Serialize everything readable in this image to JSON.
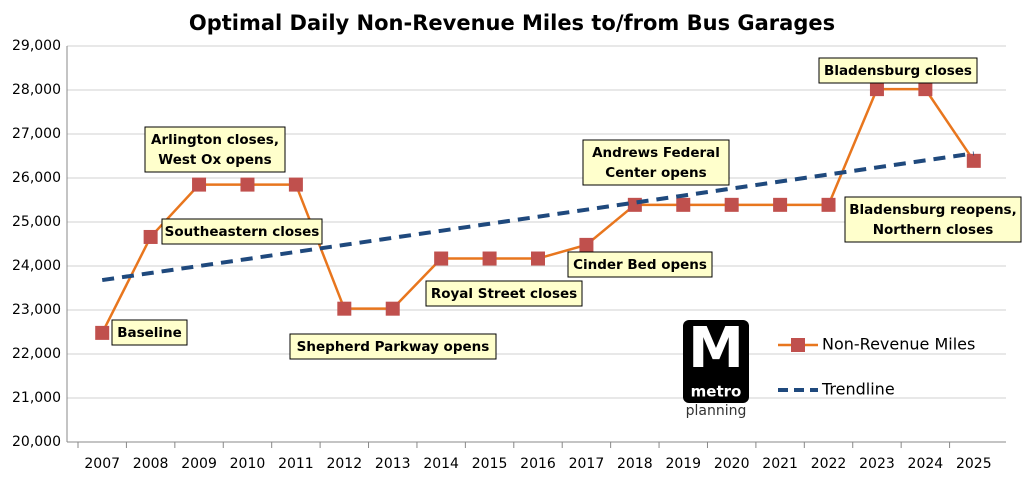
{
  "chart_data": {
    "type": "line",
    "title": "Optimal Daily Non-Revenue Miles to/from Bus Garages",
    "categories": [
      "2007",
      "2008",
      "2009",
      "2010",
      "2011",
      "2012",
      "2013",
      "2014",
      "2015",
      "2016",
      "2017",
      "2018",
      "2019",
      "2020",
      "2021",
      "2022",
      "2023",
      "2024",
      "2025"
    ],
    "series": [
      {
        "name": "Non-Revenue Miles",
        "color": "#e8761e",
        "marker_color": "#c0504d",
        "values": [
          22480,
          24660,
          25850,
          25850,
          25850,
          23030,
          23030,
          24170,
          24170,
          24170,
          24480,
          25390,
          25390,
          25390,
          25390,
          25390,
          28020,
          28020,
          26390
        ]
      },
      {
        "name": "Trendline",
        "color": "#1f497d",
        "dashed": true,
        "values": [
          23680,
          23840,
          24000,
          24160,
          24320,
          24480,
          24640,
          24800,
          24960,
          25120,
          25280,
          25440,
          25600,
          25760,
          25920,
          26080,
          26240,
          26400,
          26560
        ]
      }
    ],
    "ylim": [
      20000,
      29000
    ],
    "yticks": [
      {
        "value": 20000,
        "label": "20,000"
      },
      {
        "value": 21000,
        "label": "21,000"
      },
      {
        "value": 22000,
        "label": "22,000"
      },
      {
        "value": 23000,
        "label": "23,000"
      },
      {
        "value": 24000,
        "label": "24,000"
      },
      {
        "value": 25000,
        "label": "25,000"
      },
      {
        "value": 26000,
        "label": "26,000"
      },
      {
        "value": 27000,
        "label": "27,000"
      },
      {
        "value": 28000,
        "label": "28,000"
      },
      {
        "value": 29000,
        "label": "29,000"
      }
    ],
    "grid": true,
    "legend": "right",
    "annotations": [
      [
        "Baseline"
      ],
      [
        "Southeastern closes"
      ],
      [
        "Arlington closes,",
        "West Ox opens"
      ],
      [
        "Shepherd Parkway opens"
      ],
      [
        "Royal Street closes"
      ],
      [
        "Cinder Bed opens"
      ],
      [
        "Andrews Federal",
        "Center opens"
      ],
      [
        "Bladensburg closes"
      ],
      [
        "Bladensburg reopens,",
        "Northern closes"
      ]
    ],
    "logo": {
      "letter": "M",
      "text": "metro",
      "subtitle": "planning"
    }
  }
}
